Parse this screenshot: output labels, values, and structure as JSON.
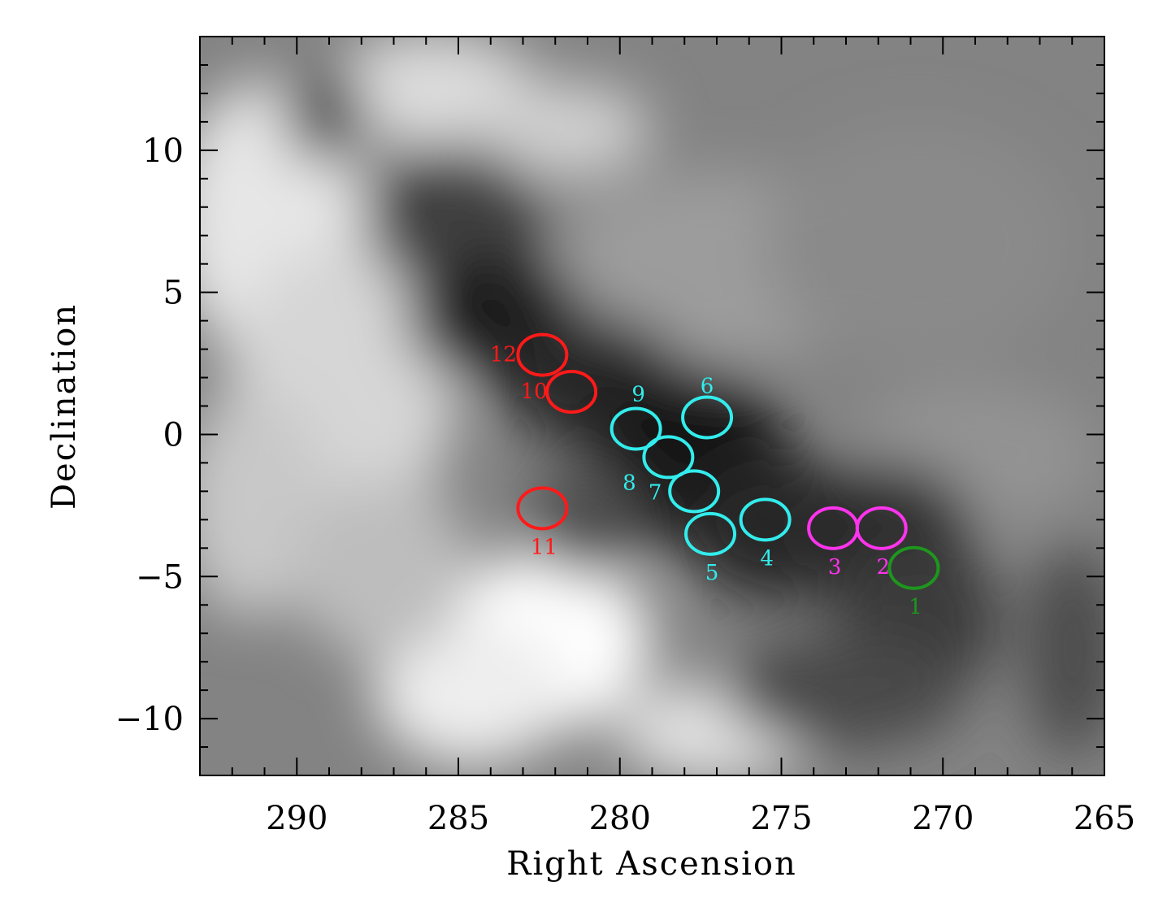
{
  "chart_data": {
    "type": "scatter",
    "title": "",
    "xlabel": "Right Ascension",
    "ylabel": "Declination",
    "xlim": [
      293,
      265
    ],
    "ylim": [
      -12,
      14
    ],
    "xticks": [
      290,
      285,
      280,
      275,
      270,
      265
    ],
    "yticks": [
      -10,
      -5,
      0,
      5,
      10
    ],
    "x_tick_labels": [
      "290",
      "285",
      "280",
      "275",
      "270",
      "265"
    ],
    "y_tick_labels": [
      "−10",
      "−5",
      "0",
      "5",
      "10"
    ],
    "grid": false,
    "background": "grayscale column-density map",
    "colors": {
      "red": "#ff1a1a",
      "cyan": "#33ecec",
      "magenta": "#ff33ee",
      "green": "#1e961e"
    },
    "series": [
      {
        "color": "#ff1a1a",
        "points": [
          {
            "label": "12",
            "x": 282.4,
            "y": 2.8
          },
          {
            "label": "10",
            "x": 281.5,
            "y": 1.5
          },
          {
            "label": "11",
            "x": 282.4,
            "y": -2.6
          }
        ]
      },
      {
        "color": "#33ecec",
        "points": [
          {
            "label": "9",
            "x": 279.5,
            "y": 0.2
          },
          {
            "label": "8",
            "x": 278.5,
            "y": -0.8
          },
          {
            "label": "6",
            "x": 277.3,
            "y": 0.6
          },
          {
            "label": "7",
            "x": 277.7,
            "y": -2.0
          },
          {
            "label": "5",
            "x": 277.2,
            "y": -3.5
          },
          {
            "label": "4",
            "x": 275.5,
            "y": -3.0
          }
        ]
      },
      {
        "color": "#ff33ee",
        "points": [
          {
            "label": "3",
            "x": 273.4,
            "y": -3.3
          },
          {
            "label": "2",
            "x": 271.9,
            "y": -3.3
          }
        ]
      },
      {
        "color": "#1e961e",
        "points": [
          {
            "label": "1",
            "x": 270.9,
            "y": -4.7
          }
        ]
      }
    ]
  }
}
